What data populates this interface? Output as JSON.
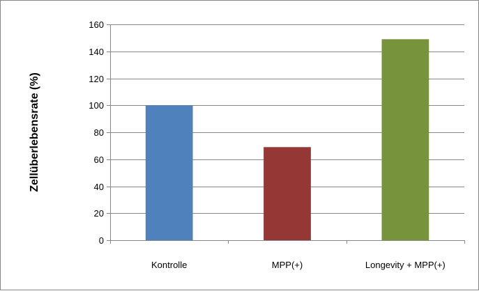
{
  "chart_data": {
    "type": "bar",
    "title": "",
    "xlabel": "",
    "ylabel": "Zellüberlebensrate (%)",
    "categories": [
      "Kontrolle",
      "MPP(+)",
      "Longevity + MPP(+)"
    ],
    "values": [
      100,
      69,
      149
    ],
    "colors": [
      "#4F81BD",
      "#953735",
      "#77933C"
    ],
    "ylim": [
      0,
      160
    ],
    "yticks": [
      "0",
      "20",
      "40",
      "60",
      "80",
      "100",
      "120",
      "140",
      "160"
    ],
    "grid": true,
    "legend": "none"
  }
}
